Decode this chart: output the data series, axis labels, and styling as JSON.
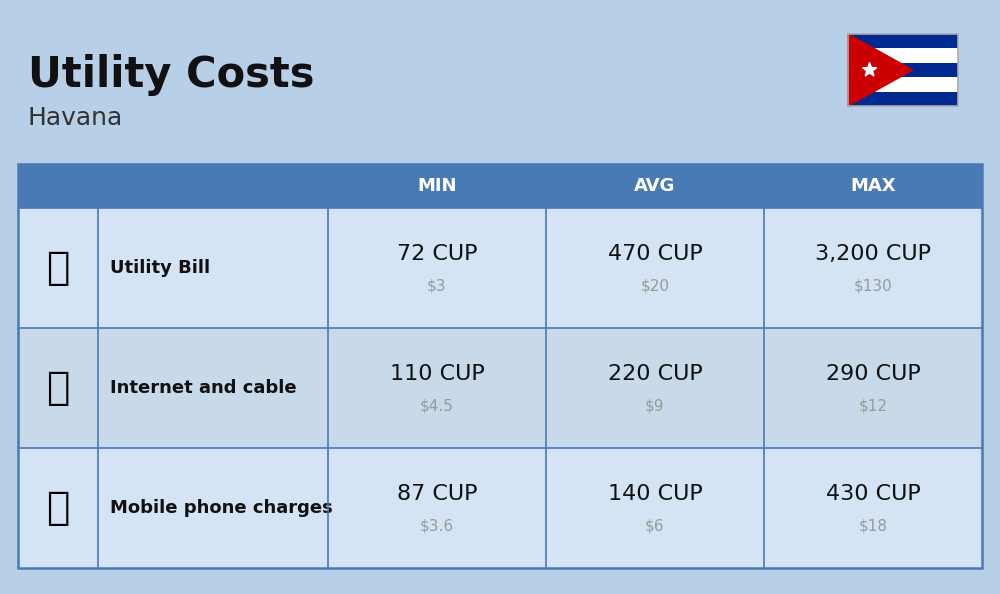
{
  "title": "Utility Costs",
  "subtitle": "Havana",
  "background_color": "#b8cfe8",
  "header_bg_color": "#4a7ab5",
  "header_text_color": "#ffffff",
  "row_bg_color_1": "#d4e4f4",
  "row_bg_color_2": "#c8daea",
  "border_color": "#4a7ab5",
  "col_headers": [
    "MIN",
    "AVG",
    "MAX"
  ],
  "rows": [
    {
      "label": "Utility Bill",
      "min_cup": "72 CUP",
      "min_usd": "$3",
      "avg_cup": "470 CUP",
      "avg_usd": "$20",
      "max_cup": "3,200 CUP",
      "max_usd": "$130"
    },
    {
      "label": "Internet and cable",
      "min_cup": "110 CUP",
      "min_usd": "$4.5",
      "avg_cup": "220 CUP",
      "avg_usd": "$9",
      "max_cup": "290 CUP",
      "max_usd": "$12"
    },
    {
      "label": "Mobile phone charges",
      "min_cup": "87 CUP",
      "min_usd": "$3.6",
      "avg_cup": "140 CUP",
      "avg_usd": "$6",
      "max_cup": "430 CUP",
      "max_usd": "$18"
    }
  ],
  "title_fontsize": 30,
  "subtitle_fontsize": 18,
  "header_fontsize": 13,
  "label_fontsize": 13,
  "value_fontsize": 16,
  "usd_fontsize": 11,
  "usd_color": "#999999",
  "flag_stripe_colors": [
    "#002a8f",
    "#ffffff",
    "#002a8f",
    "#ffffff",
    "#002a8f"
  ],
  "flag_triangle_color": "#cc0000",
  "flag_star_color": "#ffffff"
}
